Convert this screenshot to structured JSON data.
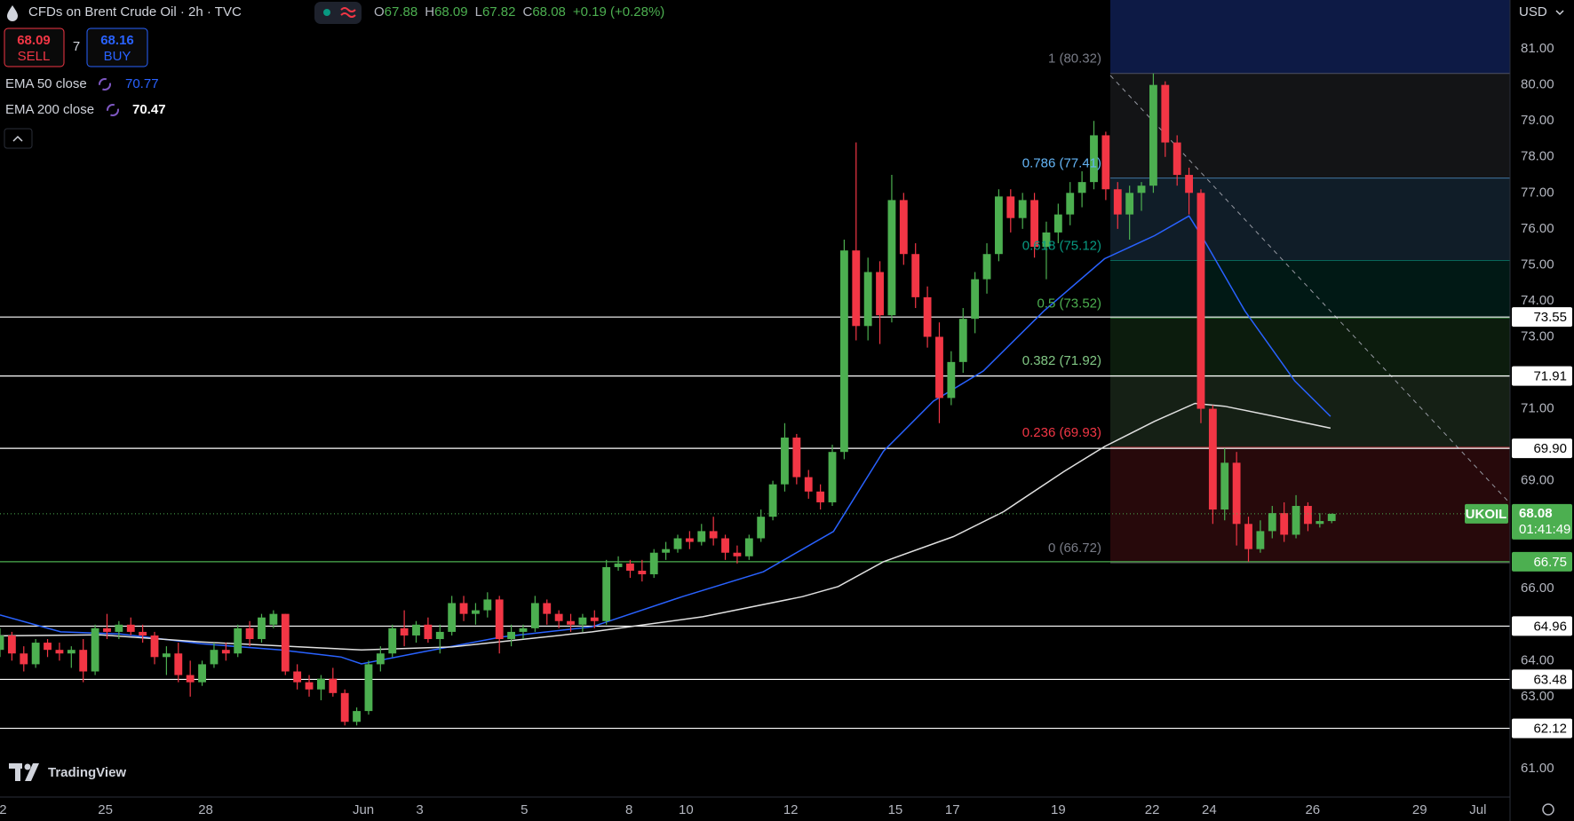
{
  "header": {
    "symbol": "CFDs on Brent Crude Oil · 2h · TVC",
    "open_label": "O",
    "open": 67.88,
    "high_label": "H",
    "high": 68.09,
    "low_label": "L",
    "low": 67.82,
    "close_label": "C",
    "close": 68.08,
    "change": "+0.19 (+0.28%)",
    "sell_price": 68.09,
    "sell": "SELL",
    "spread": 7,
    "buy_price": 68.16,
    "buy": "BUY",
    "currency": "USD",
    "watermark": "TradingView"
  },
  "chart_data": {
    "type": "candlestick",
    "up_color": "#4caf50",
    "down_color": "#f23645",
    "ohlc": [
      [
        64.3,
        64.9,
        64.1,
        64.7
      ],
      [
        64.7,
        64.8,
        64.0,
        64.2
      ],
      [
        64.2,
        64.4,
        63.7,
        63.9
      ],
      [
        63.9,
        64.6,
        63.8,
        64.5
      ],
      [
        64.5,
        64.6,
        64.1,
        64.3
      ],
      [
        64.3,
        64.5,
        64.0,
        64.2
      ],
      [
        64.2,
        64.4,
        63.8,
        64.3
      ],
      [
        64.3,
        64.6,
        63.4,
        63.7
      ],
      [
        63.7,
        65.0,
        63.6,
        64.9
      ],
      [
        64.9,
        65.3,
        64.6,
        64.8
      ],
      [
        64.8,
        65.1,
        64.6,
        65.0
      ],
      [
        65.0,
        65.2,
        64.7,
        64.8
      ],
      [
        64.8,
        65.0,
        64.5,
        64.7
      ],
      [
        64.7,
        64.8,
        63.9,
        64.1
      ],
      [
        64.1,
        64.4,
        63.6,
        64.2
      ],
      [
        64.2,
        64.5,
        63.4,
        63.6
      ],
      [
        63.6,
        64.0,
        63.0,
        63.4
      ],
      [
        63.4,
        64.0,
        63.3,
        63.9
      ],
      [
        63.9,
        64.5,
        63.8,
        64.3
      ],
      [
        64.3,
        64.5,
        64.0,
        64.2
      ],
      [
        64.2,
        65.0,
        64.1,
        64.9
      ],
      [
        64.9,
        65.1,
        64.4,
        64.6
      ],
      [
        64.6,
        65.3,
        64.5,
        65.2
      ],
      [
        65.0,
        65.4,
        64.9,
        65.3
      ],
      [
        65.3,
        65.3,
        63.6,
        63.7
      ],
      [
        63.7,
        63.9,
        63.2,
        63.4
      ],
      [
        63.4,
        63.6,
        63.0,
        63.2
      ],
      [
        63.2,
        63.6,
        62.9,
        63.5
      ],
      [
        63.5,
        63.8,
        63.0,
        63.1
      ],
      [
        63.1,
        63.2,
        62.2,
        62.3
      ],
      [
        62.3,
        62.7,
        62.2,
        62.6
      ],
      [
        62.6,
        64.0,
        62.5,
        63.9
      ],
      [
        63.9,
        64.4,
        63.7,
        64.2
      ],
      [
        64.2,
        65.0,
        64.1,
        64.9
      ],
      [
        64.9,
        65.4,
        64.4,
        64.7
      ],
      [
        64.7,
        65.1,
        64.5,
        65.0
      ],
      [
        65.0,
        65.2,
        64.5,
        64.6
      ],
      [
        64.6,
        65.0,
        64.2,
        64.8
      ],
      [
        64.8,
        65.8,
        64.7,
        65.6
      ],
      [
        65.6,
        65.8,
        65.1,
        65.3
      ],
      [
        65.3,
        65.6,
        65.0,
        65.4
      ],
      [
        65.4,
        65.9,
        65.2,
        65.7
      ],
      [
        65.7,
        65.8,
        64.2,
        64.6
      ],
      [
        64.6,
        65.0,
        64.4,
        64.8
      ],
      [
        64.8,
        65.0,
        64.6,
        64.9
      ],
      [
        64.9,
        65.8,
        64.8,
        65.6
      ],
      [
        65.6,
        65.7,
        65.0,
        65.3
      ],
      [
        65.3,
        65.4,
        64.9,
        65.1
      ],
      [
        65.1,
        65.3,
        64.8,
        65.0
      ],
      [
        65.0,
        65.3,
        64.8,
        65.2
      ],
      [
        65.2,
        65.4,
        64.9,
        65.1
      ],
      [
        65.1,
        66.8,
        65.0,
        66.6
      ],
      [
        66.6,
        66.9,
        66.5,
        66.7
      ],
      [
        66.7,
        66.8,
        66.3,
        66.5
      ],
      [
        66.5,
        66.8,
        66.2,
        66.4
      ],
      [
        66.4,
        67.1,
        66.3,
        67.0
      ],
      [
        67.0,
        67.3,
        66.8,
        67.1
      ],
      [
        67.1,
        67.5,
        67.0,
        67.4
      ],
      [
        67.4,
        67.6,
        67.1,
        67.3
      ],
      [
        67.3,
        67.8,
        67.2,
        67.6
      ],
      [
        67.6,
        68.0,
        67.2,
        67.4
      ],
      [
        67.4,
        67.5,
        66.8,
        67.0
      ],
      [
        67.0,
        67.2,
        66.7,
        66.9
      ],
      [
        66.9,
        67.5,
        66.8,
        67.4
      ],
      [
        67.4,
        68.2,
        67.3,
        68.0
      ],
      [
        68.0,
        69.0,
        67.9,
        68.9
      ],
      [
        68.9,
        70.6,
        68.7,
        70.2
      ],
      [
        70.2,
        70.3,
        68.9,
        69.1
      ],
      [
        69.1,
        69.3,
        68.5,
        68.7
      ],
      [
        68.7,
        68.9,
        68.2,
        68.4
      ],
      [
        68.4,
        70.0,
        68.3,
        69.8
      ],
      [
        69.8,
        75.7,
        69.6,
        75.4
      ],
      [
        75.4,
        78.4,
        72.9,
        73.3
      ],
      [
        73.3,
        75.2,
        72.9,
        74.8
      ],
      [
        74.8,
        75.1,
        72.8,
        73.6
      ],
      [
        73.6,
        77.5,
        73.4,
        76.8
      ],
      [
        76.8,
        77.0,
        75.0,
        75.3
      ],
      [
        75.3,
        75.6,
        73.8,
        74.1
      ],
      [
        74.1,
        74.4,
        72.7,
        73.0
      ],
      [
        73.0,
        73.4,
        70.6,
        71.3
      ],
      [
        71.3,
        72.6,
        71.1,
        72.3
      ],
      [
        72.3,
        73.8,
        72.0,
        73.5
      ],
      [
        73.5,
        74.8,
        73.1,
        74.6
      ],
      [
        74.6,
        75.6,
        74.2,
        75.3
      ],
      [
        75.3,
        77.1,
        75.1,
        76.9
      ],
      [
        76.9,
        77.1,
        75.9,
        76.3
      ],
      [
        76.3,
        77.0,
        76.0,
        76.8
      ],
      [
        76.8,
        77.0,
        75.2,
        75.5
      ],
      [
        75.5,
        76.2,
        74.6,
        75.9
      ],
      [
        75.9,
        76.7,
        75.6,
        76.4
      ],
      [
        76.4,
        77.3,
        76.1,
        77.0
      ],
      [
        77.0,
        77.6,
        76.6,
        77.3
      ],
      [
        77.3,
        79.0,
        77.1,
        78.6
      ],
      [
        78.6,
        78.7,
        76.8,
        77.1
      ],
      [
        77.1,
        77.3,
        76.0,
        76.4
      ],
      [
        76.4,
        77.2,
        75.7,
        77.0
      ],
      [
        77.0,
        77.3,
        76.5,
        77.2
      ],
      [
        77.2,
        80.32,
        77.0,
        80.0
      ],
      [
        80.0,
        80.1,
        78.0,
        78.4
      ],
      [
        78.4,
        78.6,
        77.2,
        77.5
      ],
      [
        77.5,
        77.7,
        76.4,
        77.0
      ],
      [
        77.0,
        77.1,
        70.6,
        71.0
      ],
      [
        71.0,
        71.1,
        67.8,
        68.2
      ],
      [
        68.2,
        69.9,
        67.9,
        69.5
      ],
      [
        69.5,
        69.8,
        67.2,
        67.8
      ],
      [
        67.8,
        68.0,
        66.75,
        67.1
      ],
      [
        67.1,
        67.9,
        67.0,
        67.6
      ],
      [
        67.6,
        68.3,
        67.4,
        68.1
      ],
      [
        68.1,
        68.4,
        67.3,
        67.5
      ],
      [
        67.5,
        68.6,
        67.4,
        68.3
      ],
      [
        68.3,
        68.4,
        67.6,
        67.8
      ],
      [
        67.8,
        68.1,
        67.7,
        67.88
      ],
      [
        67.88,
        68.09,
        67.82,
        68.08
      ]
    ],
    "series": [
      {
        "name": "EMA 50 close",
        "color": "#2962ff",
        "last": 70.77,
        "x": [
          0,
          5.1,
          10.1,
          16.9,
          23.6,
          28.7,
          30.4,
          35.5,
          42.2,
          49.8,
          57.4,
          64.2,
          70.1,
          74.3,
          78.5,
          82.7,
          87.8,
          92.9,
          97.1,
          100,
          101.3,
          104.7,
          108.9,
          111.9
        ],
        "values": [
          65.27,
          64.8,
          64.74,
          64.47,
          64.3,
          64.1,
          63.91,
          64.24,
          64.66,
          64.94,
          65.78,
          66.47,
          67.59,
          69.82,
          71.21,
          72.05,
          73.72,
          75.17,
          75.81,
          76.36,
          75.67,
          73.72,
          71.77,
          70.79
        ]
      },
      {
        "name": "EMA 200 close",
        "color": "#e0e0e0",
        "last": 70.47,
        "x": [
          0,
          8.4,
          16.9,
          25.3,
          30.4,
          38,
          49.8,
          59.1,
          67.5,
          70.5,
          74.3,
          80.2,
          84.4,
          89.5,
          92.9,
          97.1,
          100.5,
          103,
          107.2,
          111.9
        ],
        "values": [
          64.69,
          64.72,
          64.52,
          64.38,
          64.3,
          64.38,
          64.8,
          65.22,
          65.78,
          66.06,
          66.75,
          67.45,
          68.14,
          69.26,
          69.95,
          70.65,
          71.15,
          71.07,
          70.79,
          70.46
        ]
      }
    ],
    "xlim": [
      0,
      127
    ],
    "xticks": [
      {
        "value": 0.25,
        "label": "2"
      },
      {
        "value": 8.86,
        "label": "25"
      },
      {
        "value": 17.3,
        "label": "28"
      },
      {
        "value": 30.56,
        "label": "Jun"
      },
      {
        "value": 35.3,
        "label": "3"
      },
      {
        "value": 44.1,
        "label": "5"
      },
      {
        "value": 52.9,
        "label": "8"
      },
      {
        "value": 57.7,
        "label": "10"
      },
      {
        "value": 66.5,
        "label": "12"
      },
      {
        "value": 75.3,
        "label": "15"
      },
      {
        "value": 80.1,
        "label": "17"
      },
      {
        "value": 89.0,
        "label": "19"
      },
      {
        "value": 96.9,
        "label": "22"
      },
      {
        "value": 101.7,
        "label": "24"
      },
      {
        "value": 110.4,
        "label": "26"
      },
      {
        "value": 119.4,
        "label": "29"
      },
      {
        "value": 124.3,
        "label": "Jul"
      }
    ],
    "ylim": [
      60.21,
      82.36
    ],
    "yticks": [
      {
        "value": 81,
        "label": "81.00"
      },
      {
        "value": 80,
        "label": "80.00"
      },
      {
        "value": 79,
        "label": "79.00"
      },
      {
        "value": 78,
        "label": "78.00"
      },
      {
        "value": 77,
        "label": "77.00"
      },
      {
        "value": 76,
        "label": "76.00"
      },
      {
        "value": 75,
        "label": "75.00"
      },
      {
        "value": 74,
        "label": "74.00"
      },
      {
        "value": 73,
        "label": "73.00"
      },
      {
        "value": 71,
        "label": "71.00"
      },
      {
        "value": 69,
        "label": "69.00"
      },
      {
        "value": 66,
        "label": "66.00"
      },
      {
        "value": 64,
        "label": "64.00"
      },
      {
        "value": 63,
        "label": "63.00"
      },
      {
        "value": 61,
        "label": "61.00"
      }
    ],
    "levels": [
      {
        "value": 73.55,
        "color": "#ffffff"
      },
      {
        "value": 71.91,
        "color": "#ffffff"
      },
      {
        "value": 69.9,
        "label": "69.90",
        "color": "#ffffff"
      },
      {
        "value": 66.75,
        "color": "#4caf50"
      },
      {
        "value": 64.96,
        "color": "#ffffff"
      },
      {
        "value": 63.48,
        "color": "#ffffff"
      },
      {
        "value": 62.12,
        "color": "#ffffff"
      }
    ],
    "fib": [
      {
        "label": "1 (80.32)",
        "price": 80.32,
        "color": "#787b86"
      },
      {
        "label": "0.786 (77.41)",
        "price": 77.41,
        "color": "#64b5f6"
      },
      {
        "label": "0.618 (75.12)",
        "price": 75.12,
        "color": "#089981"
      },
      {
        "label": "0.5 (73.52)",
        "price": 73.52,
        "color": "#4caf50"
      },
      {
        "label": "0.382 (71.92)",
        "price": 71.92,
        "color": "#81c784"
      },
      {
        "label": "0.236 (69.93)",
        "price": 69.93,
        "color": "#f23645"
      },
      {
        "label": "0 (66.72)",
        "price": 66.72,
        "color": "#787b86"
      }
    ],
    "last": {
      "symbol": "UKOIL",
      "value": 68.08,
      "countdown": "01:41:49",
      "color": "#4caf50"
    }
  }
}
